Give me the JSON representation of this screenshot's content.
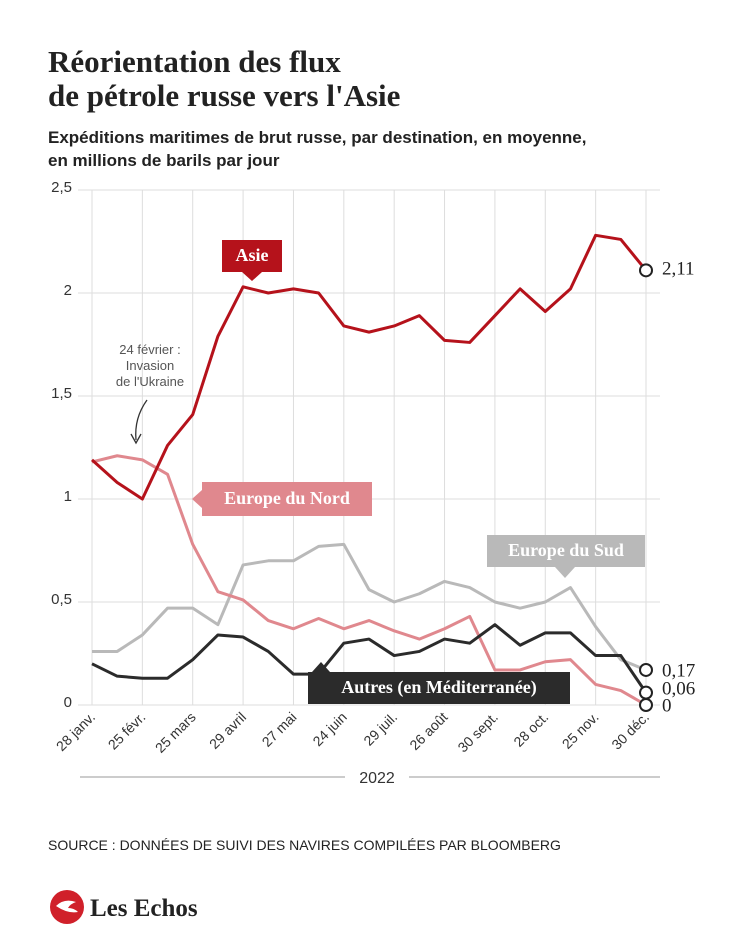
{
  "chart_data": {
    "type": "line",
    "title": [
      "Réorientation des flux",
      "de pétrole russe vers l'Asie"
    ],
    "subtitle": [
      "Expéditions maritimes de brut russe, par destination, en moyenne,",
      "en millions de barils par jour"
    ],
    "categories": [
      "28 janv.",
      null,
      "25 févr.",
      null,
      "25 mars",
      null,
      "29 avril",
      null,
      "27 mai",
      null,
      "24 juin",
      null,
      "29 juil.",
      null,
      "26 août",
      null,
      "30 sept.",
      null,
      "28 oct.",
      null,
      "25 nov.",
      null,
      "30 déc."
    ],
    "x_label": "2022",
    "ylim": [
      0,
      2.5
    ],
    "yticks": [
      0,
      {
        "value": 0.5,
        "label": "0,5"
      },
      1,
      {
        "value": 1.5,
        "label": "1,5"
      },
      2,
      {
        "value": 2.5,
        "label": "2,5"
      }
    ],
    "grid": true,
    "series": [
      {
        "name": "Europe du Sud",
        "color": "#b9b9b9",
        "values": [
          0.26,
          0.26,
          0.34,
          0.47,
          0.47,
          0.39,
          0.68,
          0.7,
          0.7,
          0.77,
          0.78,
          0.56,
          0.5,
          0.54,
          0.6,
          0.57,
          0.5,
          0.47,
          0.5,
          0.57,
          0.38,
          0.22,
          0.17
        ],
        "value_labels": [
          null,
          null,
          null,
          null,
          null,
          null,
          null,
          null,
          null,
          null,
          null,
          null,
          null,
          null,
          null,
          null,
          null,
          null,
          null,
          null,
          null,
          null,
          "0,17"
        ]
      },
      {
        "name": "Europe du Nord",
        "color": "#e0888e",
        "values": [
          1.18,
          1.21,
          1.19,
          1.12,
          0.78,
          0.55,
          0.51,
          0.41,
          0.37,
          0.42,
          0.37,
          0.41,
          0.36,
          0.32,
          0.37,
          0.43,
          0.17,
          0.17,
          0.21,
          0.22,
          0.1,
          0.07,
          0
        ],
        "value_labels": [
          null,
          null,
          null,
          null,
          null,
          null,
          null,
          null,
          null,
          null,
          null,
          null,
          null,
          null,
          null,
          null,
          null,
          null,
          null,
          null,
          null,
          null,
          "0"
        ]
      },
      {
        "name": "Autres (en Méditerranée)",
        "color": "#2b2b2b",
        "values": [
          0.2,
          0.14,
          0.13,
          0.13,
          0.22,
          0.34,
          0.33,
          0.26,
          0.15,
          0.15,
          0.3,
          0.32,
          0.24,
          0.26,
          0.32,
          0.3,
          0.39,
          0.29,
          0.35,
          0.35,
          0.24,
          0.24,
          0.06
        ],
        "value_labels": [
          null,
          null,
          null,
          null,
          null,
          null,
          null,
          null,
          null,
          null,
          null,
          null,
          null,
          null,
          null,
          null,
          null,
          null,
          null,
          null,
          null,
          null,
          "0,06"
        ]
      },
      {
        "name": "Asie",
        "color": "#b5121b",
        "values": [
          1.19,
          1.08,
          1.0,
          1.26,
          1.41,
          1.79,
          2.03,
          2.0,
          2.02,
          2.0,
          1.84,
          1.81,
          1.84,
          1.89,
          1.77,
          1.76,
          1.89,
          2.02,
          1.91,
          2.02,
          2.28,
          2.26,
          2.11
        ],
        "value_labels": [
          null,
          null,
          null,
          null,
          null,
          null,
          null,
          null,
          null,
          null,
          null,
          null,
          null,
          null,
          null,
          null,
          null,
          null,
          null,
          null,
          null,
          null,
          "2,11"
        ]
      }
    ],
    "annotation": [
      "24 février :",
      "Invasion",
      "de l'Ukraine"
    ],
    "source": "SOURCE : DONNÉES DE SUIVI DES NAVIRES COMPILÉES PAR BLOOMBERG",
    "brand": "Les Echos"
  }
}
